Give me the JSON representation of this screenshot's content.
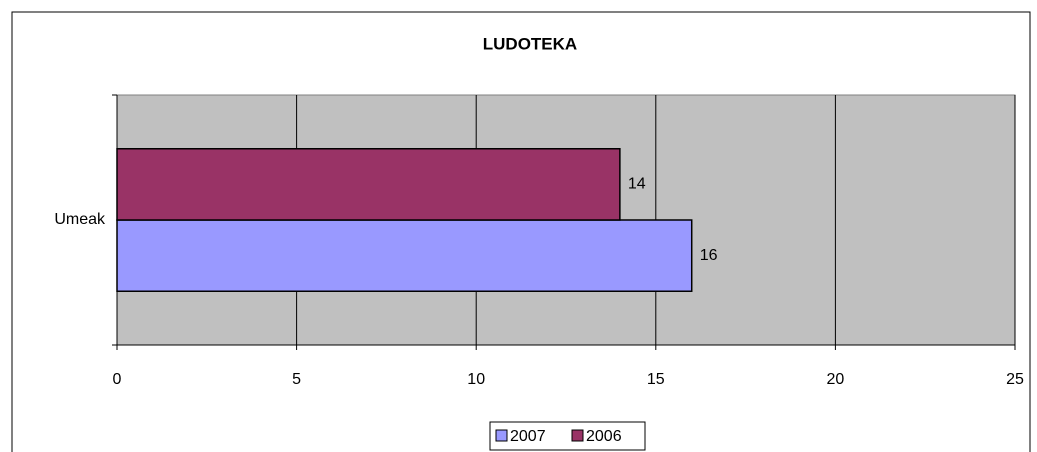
{
  "chart_data": {
    "type": "bar",
    "orientation": "horizontal",
    "title": "LUDOTEKA",
    "categories": [
      "Umeak"
    ],
    "series": [
      {
        "name": "2007",
        "color": "#9999ff",
        "values": [
          16
        ]
      },
      {
        "name": "2006",
        "color": "#993366",
        "values": [
          14
        ]
      }
    ],
    "xlim": [
      0,
      25
    ],
    "xticks": [
      0,
      5,
      10,
      15,
      20,
      25
    ],
    "grid": true,
    "legend": "bottom"
  }
}
